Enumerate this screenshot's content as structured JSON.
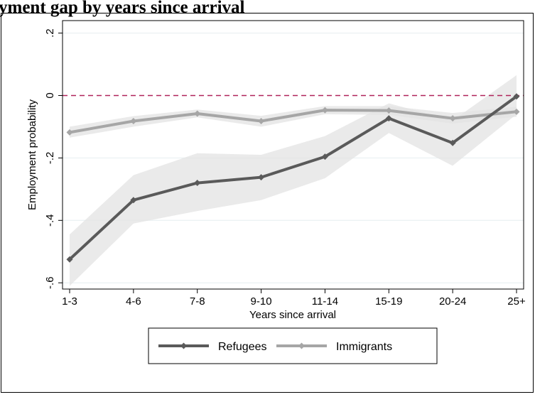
{
  "page_heading": "yment gap by years since arrival",
  "colors": {
    "refugees": "#5a5a5a",
    "immigrants": "#a6a6a6",
    "confidence_band": "#e3e3e3",
    "reference_line": "#b0245a",
    "gridline": "#e6eef0",
    "frame": "#000000"
  },
  "chart_data": {
    "type": "line",
    "title": "",
    "xlabel": "Years since arrival",
    "ylabel": "Employment probability",
    "categories": [
      "1-3",
      "4-6",
      "7-8",
      "9-10",
      "11-14",
      "15-19",
      "20-24",
      "25+"
    ],
    "ylim": [
      -0.62,
      0.24
    ],
    "yticks": [
      0.2,
      0,
      -0.2,
      -0.4,
      -0.6
    ],
    "ytick_labels": [
      ".2",
      "0",
      "-.2",
      "-.4",
      "-.6"
    ],
    "grid": true,
    "reference_line": {
      "y": 0,
      "style": "dashed"
    },
    "legend_position": "bottom",
    "series": [
      {
        "name": "Refugees",
        "values": [
          -0.525,
          -0.335,
          -0.28,
          -0.262,
          -0.196,
          -0.073,
          -0.152,
          -0.003
        ],
        "ci_low": [
          -0.61,
          -0.41,
          -0.37,
          -0.335,
          -0.265,
          -0.12,
          -0.225,
          -0.06
        ],
        "ci_high": [
          -0.445,
          -0.255,
          -0.185,
          -0.19,
          -0.13,
          -0.025,
          -0.08,
          0.065
        ]
      },
      {
        "name": "Immigrants",
        "values": [
          -0.118,
          -0.082,
          -0.058,
          -0.082,
          -0.047,
          -0.048,
          -0.073,
          -0.052
        ],
        "ci_low": [
          -0.135,
          -0.1,
          -0.07,
          -0.1,
          -0.06,
          -0.062,
          -0.09,
          -0.068
        ],
        "ci_high": [
          -0.1,
          -0.066,
          -0.045,
          -0.065,
          -0.034,
          -0.034,
          -0.056,
          -0.036
        ]
      }
    ]
  }
}
